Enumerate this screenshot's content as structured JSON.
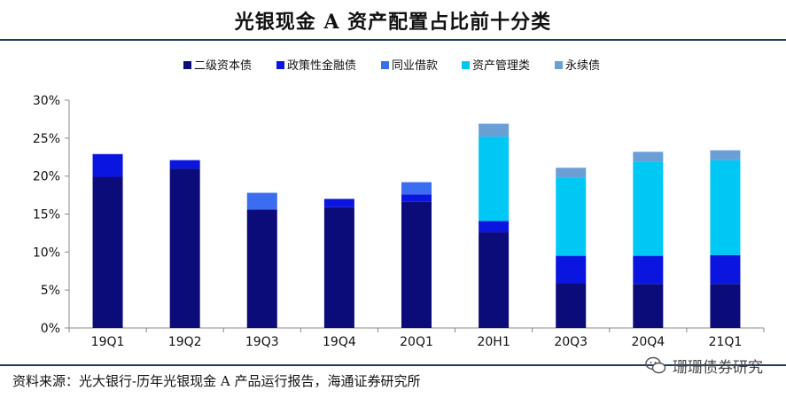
{
  "header": {
    "title": "光银现金 A 资产配置占比前十分类"
  },
  "footer": {
    "source": "资料来源：光大银行-历年光银现金 A 产品运行报告，海通证券研究所",
    "watermark": "珊珊债券研究"
  },
  "chart_data": {
    "type": "bar",
    "stacked": true,
    "categories": [
      "19Q1",
      "19Q2",
      "19Q3",
      "19Q4",
      "20Q1",
      "20H1",
      "20Q3",
      "20Q4",
      "21Q1"
    ],
    "ylim": [
      0,
      30
    ],
    "yticks": [
      "0%",
      "5%",
      "10%",
      "15%",
      "20%",
      "25%",
      "30%"
    ],
    "legend_position": "top",
    "grid": false,
    "series": [
      {
        "name": "二级资本债",
        "color": "#0b0b7a",
        "values": [
          19.9,
          21.0,
          15.6,
          15.9,
          16.6,
          12.6,
          5.9,
          5.8,
          5.8
        ]
      },
      {
        "name": "政策性金融债",
        "color": "#0a15e0",
        "values": [
          3.0,
          1.1,
          0,
          1.1,
          1.0,
          1.5,
          3.6,
          3.7,
          3.8
        ]
      },
      {
        "name": "同业借款",
        "color": "#3a6df0",
        "values": [
          0,
          0,
          2.2,
          0,
          1.6,
          0,
          0,
          0,
          0
        ]
      },
      {
        "name": "资产管理类",
        "color": "#00c8f5",
        "values": [
          0,
          0,
          0,
          0,
          0,
          11.1,
          10.3,
          12.4,
          12.5
        ]
      },
      {
        "name": "永续债",
        "color": "#6a9fd6",
        "values": [
          0,
          0,
          0,
          0,
          0,
          1.7,
          1.3,
          1.3,
          1.3
        ]
      }
    ]
  }
}
